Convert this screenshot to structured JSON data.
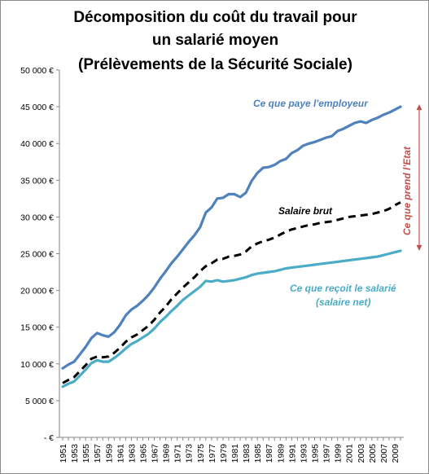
{
  "chart_data": {
    "type": "line",
    "title_lines": [
      "Décomposition du coût du travail pour",
      "un salarié moyen",
      "(Prélèvements de la Sécurité Sociale)"
    ],
    "x": [
      1951,
      1952,
      1953,
      1954,
      1955,
      1956,
      1957,
      1958,
      1959,
      1960,
      1961,
      1962,
      1963,
      1964,
      1965,
      1966,
      1967,
      1968,
      1969,
      1970,
      1971,
      1972,
      1973,
      1974,
      1975,
      1976,
      1977,
      1978,
      1979,
      1980,
      1981,
      1982,
      1983,
      1984,
      1985,
      1986,
      1987,
      1988,
      1989,
      1990,
      1991,
      1992,
      1993,
      1994,
      1995,
      1996,
      1997,
      1998,
      1999,
      2000,
      2001,
      2002,
      2003,
      2004,
      2005,
      2006,
      2007,
      2008,
      2009,
      2010
    ],
    "x_tick_labels": [
      "1951",
      "1953",
      "1955",
      "1957",
      "1959",
      "1961",
      "1963",
      "1965",
      "1967",
      "1969",
      "1971",
      "1973",
      "1975",
      "1977",
      "1979",
      "1981",
      "1983",
      "1985",
      "1987",
      "1989",
      "1991",
      "1993",
      "1995",
      "1997",
      "1999",
      "2001",
      "2003",
      "2005",
      "2007",
      "2009"
    ],
    "y_tick_labels": [
      "-  €",
      "5 000 €",
      "10 000 €",
      "15 000 €",
      "20 000 €",
      "25 000 €",
      "30 000 €",
      "35 000 €",
      "40 000 €",
      "45 000 €",
      "50 000 €"
    ],
    "ylim": [
      0,
      50000
    ],
    "grid": false,
    "series": [
      {
        "name": "Ce que paye l'employeur",
        "color": "#4f81bd",
        "style": "solid",
        "values": [
          9400,
          9900,
          10300,
          11300,
          12300,
          13500,
          14200,
          13900,
          13700,
          14300,
          15300,
          16600,
          17400,
          17900,
          18600,
          19400,
          20400,
          21600,
          22600,
          23700,
          24600,
          25600,
          26600,
          27500,
          28600,
          30600,
          31300,
          32500,
          32600,
          33100,
          33100,
          32700,
          33300,
          34900,
          36000,
          36700,
          36800,
          37100,
          37600,
          37900,
          38700,
          39100,
          39700,
          40000,
          40200,
          40500,
          40800,
          41000,
          41700,
          42000,
          42400,
          42800,
          43000,
          42800,
          43200,
          43500,
          43900,
          44200,
          44600,
          45000
        ]
      },
      {
        "name": "Salaire brut",
        "color": "#000000",
        "style": "dashed",
        "values": [
          7400,
          7800,
          8200,
          9000,
          9800,
          10700,
          11000,
          10900,
          11000,
          11500,
          12200,
          13000,
          13600,
          14000,
          14600,
          15200,
          16000,
          17000,
          17800,
          18800,
          19600,
          20400,
          21100,
          21800,
          22600,
          23300,
          23700,
          24200,
          24300,
          24600,
          24700,
          24900,
          25300,
          26000,
          26400,
          26700,
          26900,
          27200,
          27600,
          28000,
          28300,
          28500,
          28700,
          28900,
          29000,
          29200,
          29300,
          29400,
          29600,
          29800,
          30000,
          30100,
          30200,
          30300,
          30400,
          30600,
          30800,
          31100,
          31600,
          32000
        ]
      },
      {
        "name": "Ce que reçoit le salarié (salaire net)",
        "color": "#4bacc6",
        "style": "solid",
        "values": [
          6900,
          7300,
          7600,
          8400,
          9200,
          10100,
          10500,
          10300,
          10300,
          10800,
          11400,
          12100,
          12700,
          13100,
          13600,
          14100,
          14800,
          15700,
          16400,
          17200,
          17900,
          18700,
          19300,
          19900,
          20500,
          21300,
          21200,
          21400,
          21200,
          21300,
          21400,
          21600,
          21800,
          22100,
          22300,
          22400,
          22500,
          22600,
          22800,
          23000,
          23100,
          23200,
          23300,
          23400,
          23500,
          23600,
          23700,
          23800,
          23900,
          24000,
          24100,
          24200,
          24300,
          24400,
          24500,
          24600,
          24800,
          25000,
          25200,
          25400
        ]
      }
    ],
    "annotations": {
      "employer_label": "Ce que paye l'employeur",
      "brut_label": "Salaire brut",
      "net_label_line1": "Ce que reçoit le salarié",
      "net_label_line2": "(salaire net)",
      "state_label": "Ce que prend l'Etat",
      "state_color": "#c0504d"
    }
  }
}
